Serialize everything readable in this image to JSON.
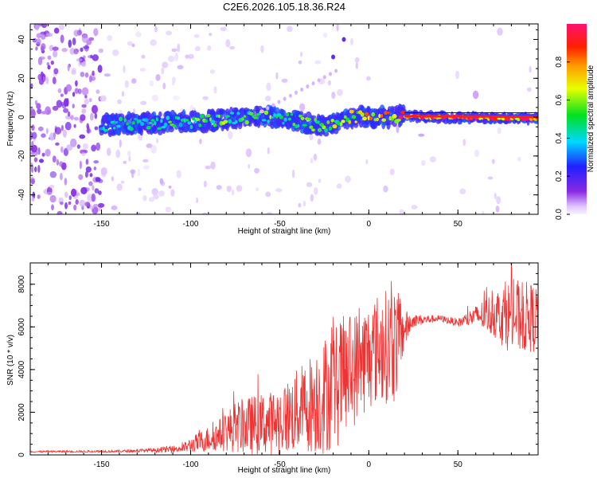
{
  "title": "C2E6.2026.105.18.36.R24",
  "chart_data": [
    {
      "type": "heatmap",
      "name": "spectrogram",
      "xlabel": "Height of straight line (km)",
      "ylabel": "Frequency (Hz)",
      "xlim": [
        -190,
        95
      ],
      "ylim": [
        -50,
        48
      ],
      "xticks": [
        -150,
        -100,
        -50,
        0,
        50
      ],
      "yticks": [
        -40,
        -20,
        0,
        20,
        40
      ],
      "colorbar": {
        "label": "Normalized spectral amplitude",
        "range": [
          0,
          1
        ],
        "ticks": [
          "0.0",
          "0.2",
          "0.4",
          "0.6",
          "0.8"
        ],
        "tick_values": [
          0.0,
          0.2,
          0.4,
          0.6,
          0.8
        ],
        "colormap": "rainbow (white-violet-blue-cyan-green-yellow-orange-red-magenta)"
      },
      "ridge": [
        {
          "x": -150,
          "y": -4,
          "amp": 0.4
        },
        {
          "x": -120,
          "y": -3,
          "amp": 0.45
        },
        {
          "x": -90,
          "y": -2,
          "amp": 0.55
        },
        {
          "x": -60,
          "y": 1,
          "amp": 0.55
        },
        {
          "x": -40,
          "y": -2,
          "amp": 0.5
        },
        {
          "x": -25,
          "y": -5,
          "amp": 0.55
        },
        {
          "x": -10,
          "y": 0,
          "amp": 0.7
        },
        {
          "x": 10,
          "y": 0,
          "amp": 0.75
        },
        {
          "x": 20,
          "y": 0.5,
          "amp": 0.9
        },
        {
          "x": 95,
          "y": -1,
          "amp": 0.9
        }
      ],
      "isolated_points": [
        {
          "x": -20,
          "y": 31,
          "amp": 0.2
        },
        {
          "x": -14,
          "y": 40,
          "amp": 0.2
        }
      ]
    },
    {
      "type": "line",
      "name": "snr",
      "xlabel": "Height of straight line (km)",
      "ylabel": "SNR (10 * v/v)",
      "xlim": [
        -190,
        95
      ],
      "ylim": [
        0,
        9000
      ],
      "xticks": [
        -150,
        -100,
        -50,
        0,
        50
      ],
      "yticks": [
        0,
        2000,
        4000,
        6000,
        8000
      ],
      "color": "#ee3333",
      "envelope": [
        {
          "x": -190,
          "base": 150,
          "amp": 40
        },
        {
          "x": -140,
          "base": 170,
          "amp": 60
        },
        {
          "x": -120,
          "base": 220,
          "amp": 100
        },
        {
          "x": -105,
          "base": 300,
          "amp": 200
        },
        {
          "x": -95,
          "base": 600,
          "amp": 500
        },
        {
          "x": -85,
          "base": 900,
          "amp": 700
        },
        {
          "x": -75,
          "base": 1300,
          "amp": 1200
        },
        {
          "x": -65,
          "base": 1400,
          "amp": 1400
        },
        {
          "x": -55,
          "base": 1500,
          "amp": 1500
        },
        {
          "x": -45,
          "base": 1800,
          "amp": 1800
        },
        {
          "x": -35,
          "base": 2300,
          "amp": 2200
        },
        {
          "x": -25,
          "base": 2800,
          "amp": 2800
        },
        {
          "x": -15,
          "base": 3500,
          "amp": 3000
        },
        {
          "x": -5,
          "base": 4300,
          "amp": 2600
        },
        {
          "x": 5,
          "base": 5000,
          "amp": 2600
        },
        {
          "x": 15,
          "base": 5200,
          "amp": 2800
        },
        {
          "x": 20,
          "base": 5900,
          "amp": 900
        },
        {
          "x": 25,
          "base": 6300,
          "amp": 300
        },
        {
          "x": 40,
          "base": 6400,
          "amp": 150
        },
        {
          "x": 50,
          "base": 6200,
          "amp": 200
        },
        {
          "x": 60,
          "base": 6500,
          "amp": 500
        },
        {
          "x": 70,
          "base": 6600,
          "amp": 1100
        },
        {
          "x": 80,
          "base": 6500,
          "amp": 1800
        },
        {
          "x": 95,
          "base": 6400,
          "amp": 1600
        }
      ],
      "peak_value": 9000
    }
  ]
}
